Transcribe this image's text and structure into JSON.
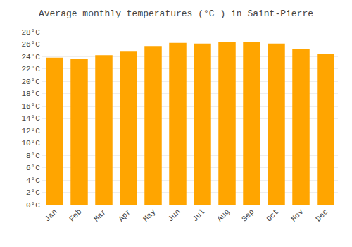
{
  "chart_data": {
    "type": "bar",
    "title": "Average monthly temperatures (°C ) in Saint-Pierre",
    "categories": [
      "Jan",
      "Feb",
      "Mar",
      "Apr",
      "May",
      "Jun",
      "Jul",
      "Aug",
      "Sep",
      "Oct",
      "Nov",
      "Dec"
    ],
    "values": [
      23.8,
      23.6,
      24.2,
      24.9,
      25.7,
      26.2,
      26.1,
      26.4,
      26.3,
      26.1,
      25.2,
      24.4
    ],
    "color": "#FFA500",
    "ylim": [
      0,
      28
    ],
    "yticks": [
      {
        "value": 0,
        "label": "0°C"
      },
      {
        "value": 2,
        "label": "2°C"
      },
      {
        "value": 4,
        "label": "4°C"
      },
      {
        "value": 6,
        "label": "6°C"
      },
      {
        "value": 8,
        "label": "8°C"
      },
      {
        "value": 10,
        "label": "10°C"
      },
      {
        "value": 12,
        "label": "12°C"
      },
      {
        "value": 14,
        "label": "14°C"
      },
      {
        "value": 16,
        "label": "16°C"
      },
      {
        "value": 18,
        "label": "18°C"
      },
      {
        "value": 20,
        "label": "20°C"
      },
      {
        "value": 22,
        "label": "22°C"
      },
      {
        "value": 24,
        "label": "24°C"
      },
      {
        "value": 26,
        "label": "26°C"
      },
      {
        "value": 28,
        "label": "28°C"
      }
    ],
    "grid": true
  }
}
